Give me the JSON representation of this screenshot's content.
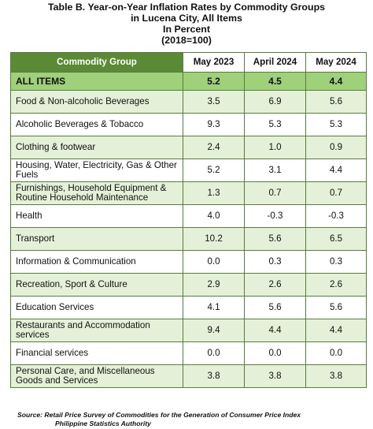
{
  "title": {
    "line1": "Table B. Year-on-Year Inflation Rates by Commodity Groups",
    "line2": "in Lucena City, All Items",
    "line3": "In Percent",
    "line4": "(2018=100)"
  },
  "table": {
    "headers": [
      "Commodity Group",
      "May 2023",
      "April 2024",
      "May 2024"
    ],
    "all_items": {
      "label": "ALL ITEMS",
      "values": [
        "5.2",
        "4.5",
        "4.4"
      ]
    },
    "rows": [
      {
        "label": "Food & Non-alcoholic Beverages",
        "values": [
          "3.5",
          "6.9",
          "5.6"
        ]
      },
      {
        "label": "Alcoholic Beverages & Tobacco",
        "values": [
          "9.3",
          "5.3",
          "5.3"
        ]
      },
      {
        "label": "Clothing & footwear",
        "values": [
          "2.4",
          "1.0",
          "0.9"
        ]
      },
      {
        "label": "Housing, Water, Electricity, Gas & Other Fuels",
        "values": [
          "5.2",
          "3.1",
          "4.4"
        ]
      },
      {
        "label": "Furnishings, Household Equipment & Routine Household Maintenance",
        "values": [
          "1.3",
          "0.7",
          "0.7"
        ]
      },
      {
        "label": "Health",
        "values": [
          "4.0",
          "-0.3",
          "-0.3"
        ]
      },
      {
        "label": "Transport",
        "values": [
          "10.2",
          "5.6",
          "6.5"
        ]
      },
      {
        "label": "Information & Communication",
        "values": [
          "0.0",
          "0.3",
          "0.3"
        ]
      },
      {
        "label": "Recreation, Sport & Culture",
        "values": [
          "2.9",
          "2.6",
          "2.6"
        ]
      },
      {
        "label": "Education Services",
        "values": [
          "4.1",
          "5.6",
          "5.6"
        ]
      },
      {
        "label": "Restaurants and Accommodation services",
        "values": [
          "9.4",
          "4.4",
          "4.4"
        ]
      },
      {
        "label": "Financial services",
        "values": [
          "0.0",
          "0.0",
          "0.0"
        ]
      },
      {
        "label": "Personal Care, and Miscellaneous Goods and Services",
        "values": [
          "3.8",
          "3.8",
          "3.8"
        ]
      }
    ]
  },
  "source": {
    "line1": "Source: Retail Price Survey of Commodities for the Generation of Consumer Price Index",
    "line2": "Philippine Statistics Authority"
  },
  "colors": {
    "header_green": "#5b8a36",
    "all_items_green": "#9fd07a",
    "row_shade": "#e4f1d8",
    "border": "#5a7a3e"
  }
}
